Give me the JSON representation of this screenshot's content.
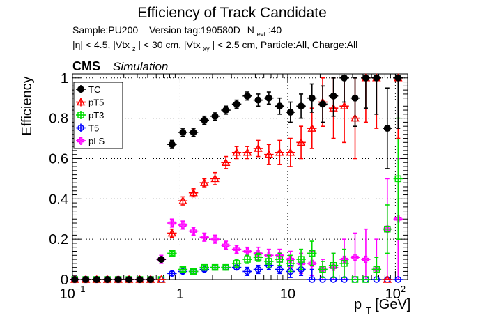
{
  "chart_data": {
    "type": "scatter",
    "title": "Efficiency of Track Candidate",
    "subtitle_line1": {
      "sample": "Sample:PU200",
      "version": "Version tag:190580D",
      "nevt_label": "N",
      "nevt_sub": "evt",
      "nevt_value": ":40"
    },
    "subtitle_line2": {
      "eta": "|η| < 4.5, |Vtx",
      "vtxz_sub": "z",
      "mid": "| < 30 cm, |Vtx",
      "vtxxy_sub": "xy",
      "tail": "| < 2.5 cm, Particle:All, Charge:All"
    },
    "cms_label": "CMS",
    "simulation_label": "Simulation",
    "ylabel": "Efficiency",
    "xlabel_main": "p",
    "xlabel_sub": "T",
    "xlabel_unit": " [GeV]",
    "x_scale": "log",
    "xlim": [
      0.1,
      130
    ],
    "ylim": [
      0,
      1.02
    ],
    "x_ticks": [
      {
        "v": 0.1,
        "base": "10",
        "exp": "−1"
      },
      {
        "v": 1,
        "base": "1",
        "exp": ""
      },
      {
        "v": 10,
        "base": "10",
        "exp": ""
      },
      {
        "v": 100,
        "base": "10",
        "exp": "2"
      }
    ],
    "y_ticks": [
      "0",
      "0.2",
      "0.4",
      "0.6",
      "0.8",
      "1"
    ],
    "grid": true,
    "legend_position": "top-left",
    "x": [
      0.105,
      0.133,
      0.168,
      0.211,
      0.266,
      0.335,
      0.422,
      0.531,
      0.668,
      0.841,
      1.06,
      1.33,
      1.68,
      2.11,
      2.66,
      3.35,
      4.22,
      5.31,
      6.68,
      8.41,
      10.6,
      13.3,
      16.8,
      21.1,
      26.6,
      33.5,
      42.2,
      53.1,
      66.8,
      84.1,
      106
    ],
    "series": [
      {
        "name": "TC",
        "color": "#000000",
        "marker": "filled-circle",
        "values": [
          0,
          0,
          0,
          0,
          0,
          0,
          0,
          0,
          0.1,
          0.67,
          0.73,
          0.73,
          0.79,
          0.81,
          0.84,
          0.87,
          0.91,
          0.89,
          0.9,
          0.86,
          0.83,
          0.86,
          0.9,
          0.87,
          0.91,
          1.0,
          0.9,
          1.0,
          1.0,
          0.75,
          1.0
        ],
        "errors": [
          0,
          0,
          0,
          0,
          0,
          0,
          0,
          0,
          0.01,
          0.02,
          0.02,
          0.02,
          0.02,
          0.02,
          0.02,
          0.02,
          0.02,
          0.03,
          0.03,
          0.04,
          0.05,
          0.06,
          0.07,
          0.09,
          0.1,
          0.12,
          0.14,
          0.15,
          0.18,
          0.2,
          0.25
        ]
      },
      {
        "name": "pT5",
        "color": "#ff0000",
        "marker": "open-triangle",
        "values": [
          0,
          0,
          0,
          0,
          0,
          0,
          0,
          0,
          0,
          0.23,
          0.39,
          0.43,
          0.48,
          0.5,
          0.58,
          0.63,
          0.63,
          0.65,
          0.62,
          0.63,
          0.63,
          0.68,
          0.75,
          0.88,
          0.85,
          0.86,
          0.8,
          1.0,
          1.0,
          0,
          1.0
        ],
        "errors": [
          0,
          0,
          0,
          0,
          0,
          0,
          0,
          0,
          0,
          0.02,
          0.02,
          0.02,
          0.02,
          0.03,
          0.03,
          0.03,
          0.03,
          0.04,
          0.05,
          0.06,
          0.07,
          0.08,
          0.1,
          0.12,
          0.15,
          0.18,
          0.2,
          0.22,
          0.25,
          0,
          0.3
        ]
      },
      {
        "name": "pT3",
        "color": "#00dd00",
        "marker": "open-square",
        "values": [
          0,
          0,
          0,
          0,
          0,
          0,
          0,
          0,
          0,
          0.13,
          0.05,
          0.04,
          0.06,
          0.06,
          0.06,
          0.08,
          0.1,
          0.11,
          0.09,
          0.1,
          0.08,
          0.1,
          0.13,
          0.05,
          0.07,
          0.08,
          0,
          0,
          0.05,
          0.25,
          0.5
        ],
        "errors": [
          0,
          0,
          0,
          0,
          0,
          0,
          0,
          0,
          0,
          0.01,
          0.01,
          0.01,
          0.01,
          0.01,
          0.01,
          0.02,
          0.02,
          0.02,
          0.03,
          0.03,
          0.04,
          0.05,
          0.06,
          0.04,
          0.06,
          0.07,
          0,
          0,
          0.06,
          0.12,
          0.3
        ]
      },
      {
        "name": "T5",
        "color": "#0000ff",
        "marker": "open-circle",
        "values": [
          0,
          0,
          0,
          0,
          0,
          0,
          0,
          0,
          0,
          0.03,
          0.04,
          0.04,
          0.05,
          0.06,
          0.06,
          0.06,
          0.04,
          0.05,
          0.07,
          0.05,
          0.04,
          0.05,
          0,
          0,
          0,
          0,
          0,
          0,
          0,
          0,
          0
        ],
        "errors": [
          0,
          0,
          0,
          0,
          0,
          0,
          0,
          0,
          0,
          0.01,
          0.01,
          0.01,
          0.01,
          0.01,
          0.01,
          0.01,
          0.02,
          0.02,
          0.02,
          0.02,
          0.03,
          0.03,
          0.05,
          0,
          0,
          0,
          0,
          0,
          0,
          0,
          0
        ]
      },
      {
        "name": "pLS",
        "color": "#ff00ff",
        "marker": "open-cross",
        "values": [
          0,
          0,
          0,
          0,
          0,
          0,
          0,
          0,
          0.1,
          0.28,
          0.27,
          0.24,
          0.21,
          0.2,
          0.17,
          0.15,
          0.14,
          0.13,
          0.12,
          0.12,
          0.1,
          0.08,
          0.08,
          0.05,
          0.06,
          0.1,
          0.11,
          0.1,
          0.05,
          0.25,
          0.3
        ],
        "errors": [
          0,
          0,
          0,
          0,
          0,
          0,
          0,
          0,
          0.02,
          0.02,
          0.02,
          0.02,
          0.02,
          0.02,
          0.02,
          0.02,
          0.02,
          0.03,
          0.03,
          0.03,
          0.04,
          0.05,
          0.06,
          0.05,
          0.07,
          0.1,
          0.12,
          0.15,
          0.15,
          0.25,
          0.3
        ]
      }
    ]
  }
}
